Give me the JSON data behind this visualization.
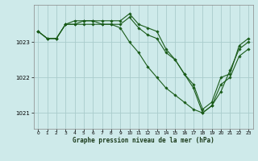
{
  "title": "Graphe pression niveau de la mer (hPa)",
  "background_color": "#ceeaea",
  "grid_color": "#aacccc",
  "line_color": "#1a5c1a",
  "x_ticks": [
    0,
    1,
    2,
    3,
    4,
    5,
    6,
    7,
    8,
    9,
    10,
    11,
    12,
    13,
    14,
    15,
    16,
    17,
    18,
    19,
    20,
    21,
    22,
    23
  ],
  "y_ticks": [
    1021,
    1022,
    1023
  ],
  "ylim": [
    1020.55,
    1024.05
  ],
  "xlim": [
    -0.5,
    23.5
  ],
  "series": [
    [
      1023.3,
      1023.1,
      1023.1,
      1023.5,
      1023.5,
      1023.6,
      1023.6,
      1023.6,
      1023.6,
      1023.6,
      1023.8,
      1023.5,
      1023.4,
      1023.3,
      1022.8,
      1022.5,
      1022.1,
      1021.7,
      1021.0,
      1021.2,
      1021.8,
      1022.0,
      1022.6,
      1022.8
    ],
    [
      1023.3,
      1023.1,
      1023.1,
      1023.5,
      1023.6,
      1023.6,
      1023.6,
      1023.5,
      1023.5,
      1023.5,
      1023.7,
      1023.4,
      1023.2,
      1023.1,
      1022.7,
      1022.5,
      1022.1,
      1021.8,
      1021.1,
      1021.3,
      1022.0,
      1022.1,
      1022.9,
      1023.1
    ],
    [
      1023.3,
      1023.1,
      1023.1,
      1023.5,
      1023.5,
      1023.5,
      1023.5,
      1023.5,
      1023.5,
      1023.4,
      1023.0,
      1022.7,
      1022.3,
      1022.0,
      1021.7,
      1021.5,
      1021.3,
      1021.1,
      1021.0,
      1021.2,
      1021.6,
      1022.2,
      1022.8,
      1023.0
    ]
  ]
}
